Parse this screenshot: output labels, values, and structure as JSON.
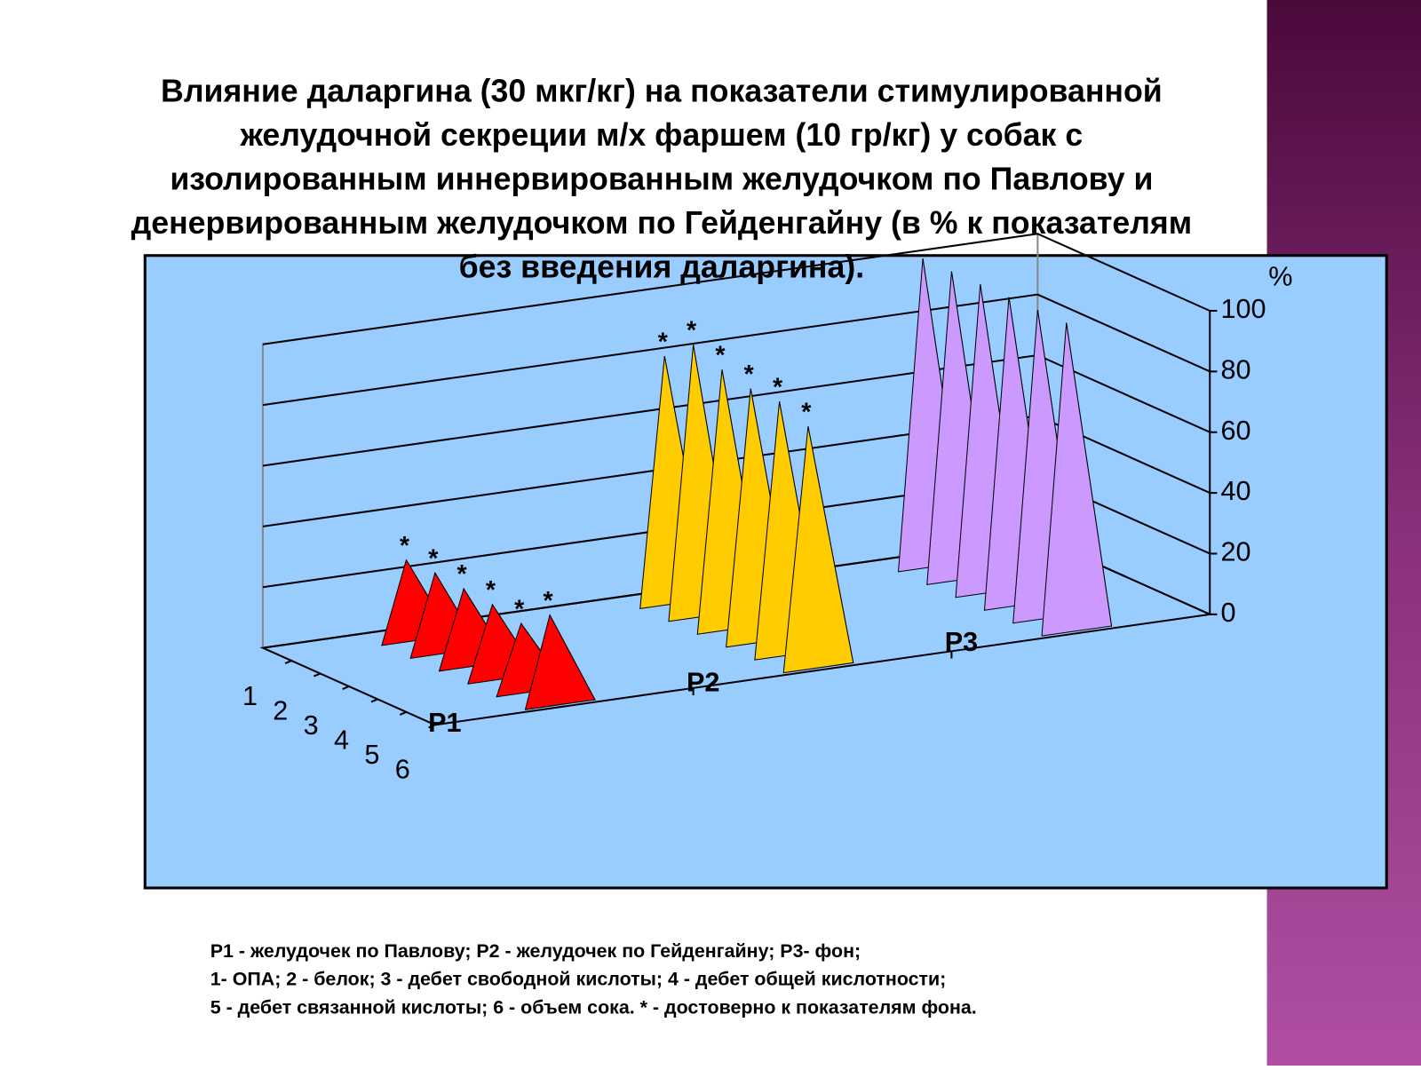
{
  "chart_data": {
    "type": "pyramid3d",
    "title": [
      "Влияние  даларгина (30 мкг/кг) на показатели стимулированной",
      "желудочной секреции м/х фаршем (10 гр/кг)  у собак с",
      "изолированным иннервированным желудочком по Павлову и",
      "денервированным желудочком по Гейденгайну  (в % к показателям",
      "без введения даларгина)."
    ],
    "categories": [
      "P1",
      "P2",
      "P3"
    ],
    "category_colors": [
      "#ff0000",
      "#ffcc00",
      "#cc99ff"
    ],
    "series": [
      {
        "name": "1",
        "values": [
          25,
          80,
          100
        ],
        "marks": [
          "*",
          "*",
          null
        ]
      },
      {
        "name": "2",
        "values": [
          25,
          88,
          100
        ],
        "marks": [
          "*",
          "*",
          null
        ]
      },
      {
        "name": "3",
        "values": [
          24,
          84,
          100
        ],
        "marks": [
          "*",
          "*",
          null
        ]
      },
      {
        "name": "4",
        "values": [
          23,
          82,
          100
        ],
        "marks": [
          "*",
          "*",
          null
        ]
      },
      {
        "name": "5",
        "values": [
          21,
          82,
          100
        ],
        "marks": [
          "*",
          "*",
          null
        ]
      },
      {
        "name": "6",
        "values": [
          28,
          78,
          100
        ],
        "marks": [
          "*",
          "*",
          null
        ]
      }
    ],
    "y_unit": "%",
    "ylim": [
      0,
      100
    ],
    "yticks": [
      0,
      20,
      40,
      60,
      80,
      100
    ],
    "grid": true,
    "notes": [
      "Р1 - желудочек по Павлову;      Р2 - желудочек по Гейденгайну;      Р3- фон;",
      "1- ОПА;   2 - белок;   3 - дебет свободной кислоты;    4 - дебет общей кислотности;",
      "5 - дебет связанной кислоты;    6 - объем сока. * - достоверно к показателям фона."
    ]
  }
}
